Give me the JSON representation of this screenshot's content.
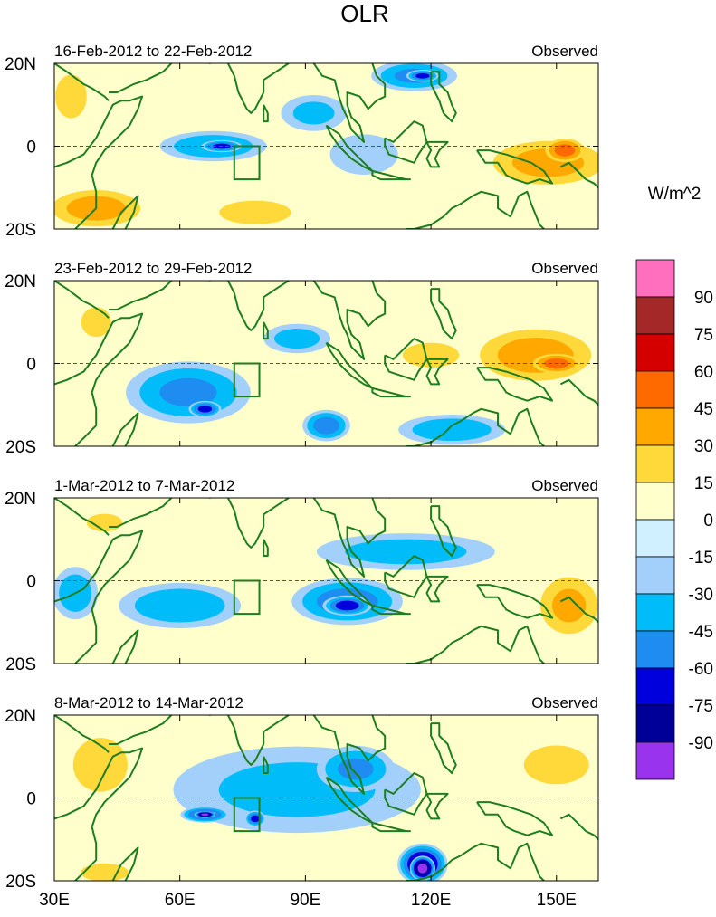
{
  "chart_data": {
    "type": "heatmap",
    "title": "OLR",
    "units": "W/m^2",
    "x_axis": {
      "range": [
        30,
        160
      ],
      "ticks": [
        30,
        60,
        90,
        120,
        150
      ],
      "tick_labels": [
        "30E",
        "60E",
        "90E",
        "120E",
        "150E"
      ]
    },
    "y_axis": {
      "range": [
        -20,
        20
      ],
      "ticks": [
        20,
        0,
        -20
      ],
      "tick_labels": [
        "20N",
        "0",
        "20S"
      ]
    },
    "colorbar": {
      "levels": [
        90,
        75,
        60,
        45,
        30,
        15,
        0,
        -15,
        -30,
        -45,
        -60,
        -75,
        -90
      ],
      "labels": [
        "90",
        "75",
        "60",
        "45",
        "30",
        "15",
        "0",
        "-15",
        "-30",
        "-45",
        "-60",
        "-75",
        "-90"
      ],
      "colors": [
        "#ff6fbe",
        "#a52828",
        "#d40000",
        "#ff6a00",
        "#ffa800",
        "#ffd83a",
        "#ffffcc",
        "#d0f0ff",
        "#a2d0fa",
        "#00bdfa",
        "#1e8cf0",
        "#0000dd",
        "#000099",
        "#9933ee"
      ]
    },
    "box_region": {
      "lon": [
        73,
        79
      ],
      "lat": [
        -8,
        0
      ]
    },
    "panels": [
      {
        "left_label": "16-Feb-2012 to 22-Feb-2012",
        "right_label": "Observed",
        "anomalies": [
          {
            "lon": 68,
            "lat": 0,
            "rx": 14,
            "ry": 4,
            "value": -40
          },
          {
            "lon": 70,
            "lat": 0,
            "rx": 5,
            "ry": 1.5,
            "value": -62
          },
          {
            "lon": 92,
            "lat": 8,
            "rx": 9,
            "ry": 5,
            "value": -32
          },
          {
            "lon": 116,
            "lat": 17,
            "rx": 11,
            "ry": 4,
            "value": -45
          },
          {
            "lon": 118,
            "lat": 17,
            "rx": 4,
            "ry": 1.5,
            "value": -62
          },
          {
            "lon": 104,
            "lat": -2,
            "rx": 10,
            "ry": 6,
            "value": -25
          },
          {
            "lon": 148,
            "lat": -4,
            "rx": 15,
            "ry": 6,
            "value": 33
          },
          {
            "lon": 152,
            "lat": -1,
            "rx": 5,
            "ry": 3,
            "value": 48
          },
          {
            "lon": 40,
            "lat": -15,
            "rx": 12,
            "ry": 5,
            "value": 34
          },
          {
            "lon": 34,
            "lat": 12,
            "rx": 5,
            "ry": 7,
            "value": 20
          },
          {
            "lon": 78,
            "lat": -16,
            "rx": 12,
            "ry": 4,
            "value": 18
          }
        ]
      },
      {
        "left_label": "23-Feb-2012 to 29-Feb-2012",
        "right_label": "Observed",
        "anomalies": [
          {
            "lon": 62,
            "lat": -7,
            "rx": 16,
            "ry": 8,
            "value": -45
          },
          {
            "lon": 66,
            "lat": -11,
            "rx": 4,
            "ry": 2,
            "value": -62
          },
          {
            "lon": 88,
            "lat": 6,
            "rx": 9,
            "ry": 4,
            "value": -35
          },
          {
            "lon": 95,
            "lat": -15,
            "rx": 6,
            "ry": 4,
            "value": -50
          },
          {
            "lon": 125,
            "lat": -16,
            "rx": 14,
            "ry": 4,
            "value": -40
          },
          {
            "lon": 145,
            "lat": 2,
            "rx": 15,
            "ry": 7,
            "value": 35
          },
          {
            "lon": 150,
            "lat": 0,
            "rx": 6,
            "ry": 2.5,
            "value": 48
          },
          {
            "lon": 120,
            "lat": 2,
            "rx": 9,
            "ry": 4,
            "value": 20
          },
          {
            "lon": 40,
            "lat": 10,
            "rx": 5,
            "ry": 5,
            "value": 18
          }
        ]
      },
      {
        "left_label": "1-Mar-2012 to 7-Mar-2012",
        "right_label": "Observed",
        "anomalies": [
          {
            "lon": 100,
            "lat": -5,
            "rx": 14,
            "ry": 6,
            "value": -50
          },
          {
            "lon": 100,
            "lat": -6,
            "rx": 6,
            "ry": 2.5,
            "value": -65
          },
          {
            "lon": 60,
            "lat": -6,
            "rx": 16,
            "ry": 6,
            "value": -40
          },
          {
            "lon": 114,
            "lat": 7,
            "rx": 24,
            "ry": 5,
            "value": -35
          },
          {
            "lon": 35,
            "lat": -3,
            "rx": 6,
            "ry": 7,
            "value": -38
          },
          {
            "lon": 153,
            "lat": -6,
            "rx": 8,
            "ry": 8,
            "value": 30
          },
          {
            "lon": 42,
            "lat": 14,
            "rx": 6,
            "ry": 3,
            "value": 18
          }
        ]
      },
      {
        "left_label": "8-Mar-2012 to 14-Mar-2012",
        "right_label": "Observed",
        "anomalies": [
          {
            "lon": 88,
            "lat": 2,
            "rx": 34,
            "ry": 12,
            "value": -32
          },
          {
            "lon": 66,
            "lat": -4,
            "rx": 6,
            "ry": 2,
            "value": -62
          },
          {
            "lon": 66,
            "lat": -4,
            "rx": 2.5,
            "ry": 0.8,
            "value": -93
          },
          {
            "lon": 78,
            "lat": -5,
            "rx": 2.5,
            "ry": 2,
            "value": -62
          },
          {
            "lon": 118,
            "lat": -16,
            "rx": 6,
            "ry": 5,
            "value": -78
          },
          {
            "lon": 118,
            "lat": -17,
            "rx": 3,
            "ry": 3,
            "value": -95
          },
          {
            "lon": 102,
            "lat": 7,
            "rx": 10,
            "ry": 6,
            "value": -45
          },
          {
            "lon": 41,
            "lat": 8,
            "rx": 8,
            "ry": 8,
            "value": 25
          },
          {
            "lon": 150,
            "lat": 8,
            "rx": 10,
            "ry": 6,
            "value": 22
          },
          {
            "lon": 42,
            "lat": -18,
            "rx": 8,
            "ry": 3,
            "value": 18
          }
        ]
      }
    ]
  }
}
